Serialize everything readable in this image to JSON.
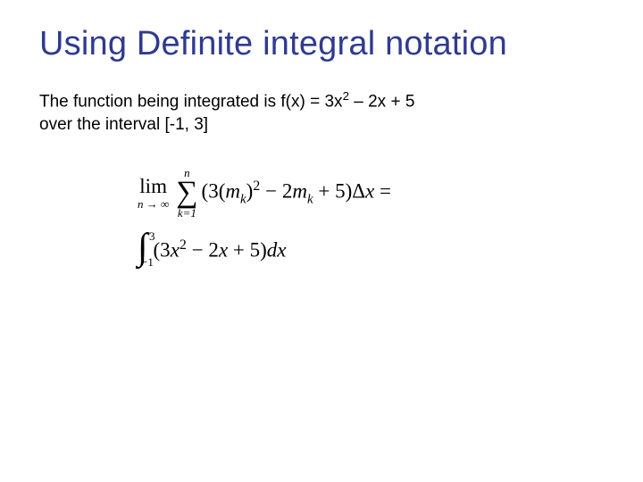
{
  "colors": {
    "title": "#2f3b8f",
    "body": "#000000",
    "background": "#ffffff"
  },
  "title": "Using Definite integral notation",
  "body": {
    "line1_prefix": "The function being integrated is f(x) = 3x",
    "line1_exp": "2",
    "line1_suffix": " – 2x + 5",
    "line2": "over the interval [-1, 3]"
  },
  "limit": {
    "label": "lim",
    "sub": "n → ∞"
  },
  "sigma": {
    "upper": "n",
    "lower": "k=1"
  },
  "riemann": {
    "open": "(3(",
    "m": "m",
    "k1": "k",
    "close_paren": ")",
    "sq": "2",
    "minus2": " − 2",
    "m2": "m",
    "k2": "k",
    "plus5": " + 5)Δ",
    "x": "x",
    "eq": " ="
  },
  "integral": {
    "upper": "3",
    "lower": "−1",
    "open": "(3",
    "x1": "x",
    "sq": "2",
    "mid": " − 2",
    "x2": "x",
    "tail": " + 5)",
    "dx_d": "d",
    "dx_x": "x"
  }
}
